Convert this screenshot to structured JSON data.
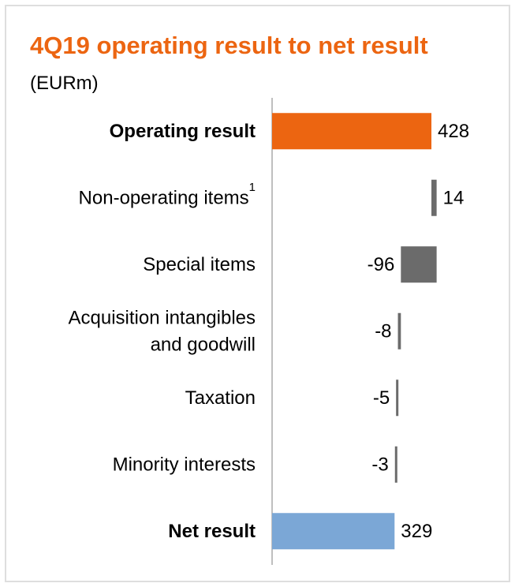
{
  "chart_data": {
    "type": "bar",
    "title": "4Q19 operating result to net result",
    "subtitle": "(EURm)",
    "categories": [
      [
        "Operating result"
      ],
      [
        "Non-operating items"
      ],
      [
        "Special items"
      ],
      [
        "Acquisition intangibles",
        "and goodwill"
      ],
      [
        "Taxation"
      ],
      [
        "Minority interests"
      ],
      [
        "Net result"
      ]
    ],
    "category_superscripts": [
      "",
      "1",
      "",
      "",
      "",
      "",
      ""
    ],
    "bold_categories": [
      true,
      false,
      false,
      false,
      false,
      false,
      true
    ],
    "values": [
      428,
      14,
      -96,
      -8,
      -5,
      -3,
      329
    ],
    "value_labels": [
      "428",
      "14",
      "-96",
      "-8",
      "-5",
      "-3",
      "329"
    ],
    "waterfall": true,
    "grid": false,
    "colors": {
      "title": "#ec6511",
      "operating_result": "#ec6511",
      "intermediate": "#6b6b6b",
      "net_result": "#7ba7d6",
      "axis": "#bfbfbf",
      "frame": "#dedede"
    }
  }
}
